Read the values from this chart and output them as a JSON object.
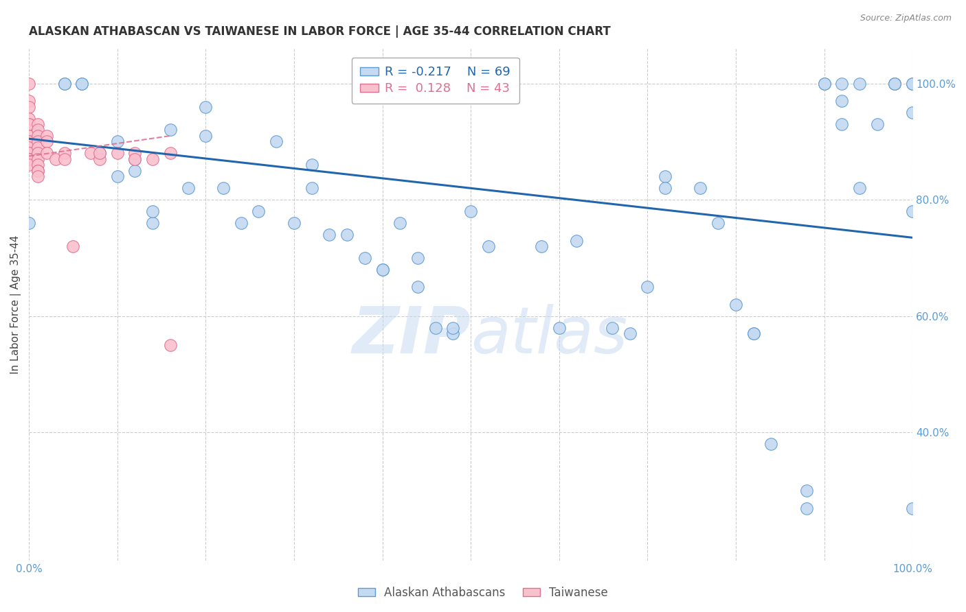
{
  "title": "ALASKAN ATHABASCAN VS TAIWANESE IN LABOR FORCE | AGE 35-44 CORRELATION CHART",
  "source": "Source: ZipAtlas.com",
  "ylabel": "In Labor Force | Age 35-44",
  "blue_label": "Alaskan Athabascans",
  "pink_label": "Taiwanese",
  "blue_R": -0.217,
  "blue_N": 69,
  "pink_R": 0.128,
  "pink_N": 43,
  "blue_color": "#c5d9f0",
  "pink_color": "#f9c0ce",
  "blue_edge_color": "#5b9bd5",
  "pink_edge_color": "#e07090",
  "blue_line_color": "#2166ac",
  "pink_line_color": "#e07090",
  "watermark_color": "#c5d9f0",
  "grid_color": "#cccccc",
  "background_color": "#ffffff",
  "title_fontsize": 12,
  "right_tick_color": "#5b9bd5",
  "xtick_color": "#5b9bd5",
  "blue_x": [
    0.0,
    0.0,
    0.04,
    0.04,
    0.06,
    0.06,
    0.08,
    0.1,
    0.1,
    0.12,
    0.12,
    0.14,
    0.14,
    0.16,
    0.18,
    0.2,
    0.2,
    0.22,
    0.24,
    0.26,
    0.28,
    0.3,
    0.32,
    0.32,
    0.34,
    0.36,
    0.38,
    0.4,
    0.4,
    0.42,
    0.44,
    0.44,
    0.46,
    0.48,
    0.48,
    0.5,
    0.52,
    0.58,
    0.6,
    0.62,
    0.66,
    0.68,
    0.7,
    0.72,
    0.72,
    0.76,
    0.78,
    0.8,
    0.82,
    0.82,
    0.84,
    0.88,
    0.88,
    0.9,
    0.9,
    0.92,
    0.92,
    0.92,
    0.94,
    0.94,
    0.96,
    0.98,
    0.98,
    0.98,
    1.0,
    1.0,
    1.0,
    1.0,
    1.0
  ],
  "blue_y": [
    0.88,
    0.76,
    1.0,
    1.0,
    1.0,
    1.0,
    0.88,
    0.9,
    0.84,
    0.87,
    0.85,
    0.76,
    0.78,
    0.92,
    0.82,
    0.91,
    0.96,
    0.82,
    0.76,
    0.78,
    0.9,
    0.76,
    0.86,
    0.82,
    0.74,
    0.74,
    0.7,
    0.68,
    0.68,
    0.76,
    0.65,
    0.7,
    0.58,
    0.57,
    0.58,
    0.78,
    0.72,
    0.72,
    0.58,
    0.73,
    0.58,
    0.57,
    0.65,
    0.84,
    0.82,
    0.82,
    0.76,
    0.62,
    0.57,
    0.57,
    0.38,
    0.3,
    0.27,
    1.0,
    1.0,
    0.97,
    0.93,
    1.0,
    0.82,
    1.0,
    0.93,
    1.0,
    1.0,
    1.0,
    0.95,
    0.78,
    0.27,
    1.0,
    1.0
  ],
  "pink_x": [
    0.0,
    0.0,
    0.0,
    0.0,
    0.0,
    0.0,
    0.0,
    0.0,
    0.0,
    0.0,
    0.0,
    0.0,
    0.0,
    0.0,
    0.0,
    0.0,
    0.01,
    0.01,
    0.01,
    0.01,
    0.01,
    0.01,
    0.01,
    0.01,
    0.01,
    0.01,
    0.01,
    0.02,
    0.02,
    0.02,
    0.03,
    0.04,
    0.04,
    0.05,
    0.07,
    0.08,
    0.08,
    0.1,
    0.12,
    0.12,
    0.14,
    0.16,
    0.16
  ],
  "pink_y": [
    1.0,
    0.97,
    0.96,
    0.94,
    0.93,
    0.93,
    0.91,
    0.9,
    0.9,
    0.89,
    0.88,
    0.88,
    0.87,
    0.87,
    0.87,
    0.86,
    0.93,
    0.92,
    0.91,
    0.9,
    0.89,
    0.88,
    0.87,
    0.86,
    0.85,
    0.85,
    0.84,
    0.91,
    0.9,
    0.88,
    0.87,
    0.88,
    0.87,
    0.72,
    0.88,
    0.87,
    0.88,
    0.88,
    0.88,
    0.87,
    0.87,
    0.88,
    0.55
  ],
  "xlim": [
    0.0,
    1.0
  ],
  "ylim": [
    0.18,
    1.06
  ],
  "right_yticks": [
    0.4,
    0.6,
    0.8,
    1.0
  ],
  "right_ytick_labels": [
    "40.0%",
    "60.0%",
    "80.0%",
    "100.0%"
  ],
  "blue_line_x0": 0.0,
  "blue_line_x1": 1.0,
  "blue_line_y0": 0.905,
  "blue_line_y1": 0.735,
  "pink_line_x0": 0.0,
  "pink_line_x1": 0.16,
  "pink_line_y0": 0.875,
  "pink_line_y1": 0.91
}
